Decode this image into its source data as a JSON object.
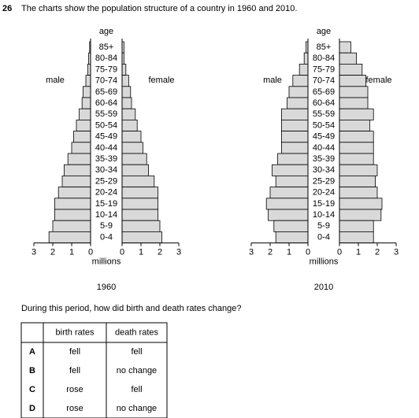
{
  "question": {
    "number": "26",
    "text": "The charts show the population structure of a country in 1960 and 2010.",
    "prompt": "During this period, how did birth and death rates change?"
  },
  "chart_data": [
    {
      "type": "population-pyramid",
      "title": "1960",
      "y_label": "age",
      "x_label": "millions",
      "categories": [
        "85+",
        "80-84",
        "75-79",
        "70-74",
        "65-69",
        "60-64",
        "55-59",
        "50-54",
        "45-49",
        "40-44",
        "35-39",
        "30-34",
        "25-29",
        "20-24",
        "15-19",
        "10-14",
        "5-9",
        "0-4"
      ],
      "series": [
        {
          "name": "male",
          "color": "#d9d9d9",
          "values": [
            0.05,
            0.1,
            0.15,
            0.25,
            0.4,
            0.45,
            0.6,
            0.75,
            0.9,
            1.0,
            1.2,
            1.4,
            1.5,
            1.7,
            1.9,
            1.9,
            2.0,
            2.2
          ]
        },
        {
          "name": "female",
          "color": "#d9d9d9",
          "values": [
            0.1,
            0.1,
            0.2,
            0.35,
            0.45,
            0.5,
            0.7,
            0.8,
            1.0,
            1.1,
            1.3,
            1.4,
            1.7,
            1.9,
            1.9,
            1.9,
            2.0,
            2.1
          ]
        }
      ],
      "xlim": [
        0,
        3
      ],
      "xticks": [
        0,
        1,
        2,
        3
      ]
    },
    {
      "type": "population-pyramid",
      "title": "2010",
      "y_label": "age",
      "x_label": "millions",
      "categories": [
        "85+",
        "80-84",
        "75-79",
        "70-74",
        "65-69",
        "60-64",
        "55-59",
        "50-54",
        "45-49",
        "40-44",
        "35-39",
        "30-34",
        "25-29",
        "20-24",
        "15-19",
        "10-14",
        "5-9",
        "0-4"
      ],
      "series": [
        {
          "name": "male",
          "color": "#d9d9d9",
          "values": [
            0.1,
            0.2,
            0.45,
            0.8,
            1.0,
            1.1,
            1.4,
            1.4,
            1.4,
            1.4,
            1.6,
            1.9,
            1.7,
            2.0,
            2.2,
            2.1,
            1.8,
            1.7
          ]
        },
        {
          "name": "female",
          "color": "#d9d9d9",
          "values": [
            0.6,
            0.9,
            1.2,
            1.4,
            1.5,
            1.5,
            1.8,
            1.6,
            1.8,
            1.8,
            1.8,
            2.0,
            1.9,
            2.0,
            2.25,
            2.2,
            1.8,
            1.8
          ]
        }
      ],
      "xlim": [
        0,
        3
      ],
      "xticks": [
        0,
        1,
        2,
        3
      ]
    }
  ],
  "table": {
    "header": [
      "birth rates",
      "death rates"
    ],
    "rows": [
      [
        "A",
        "fell",
        "fell"
      ],
      [
        "B",
        "fell",
        "no change"
      ],
      [
        "C",
        "rose",
        "fell"
      ],
      [
        "D",
        "rose",
        "no change"
      ]
    ]
  }
}
